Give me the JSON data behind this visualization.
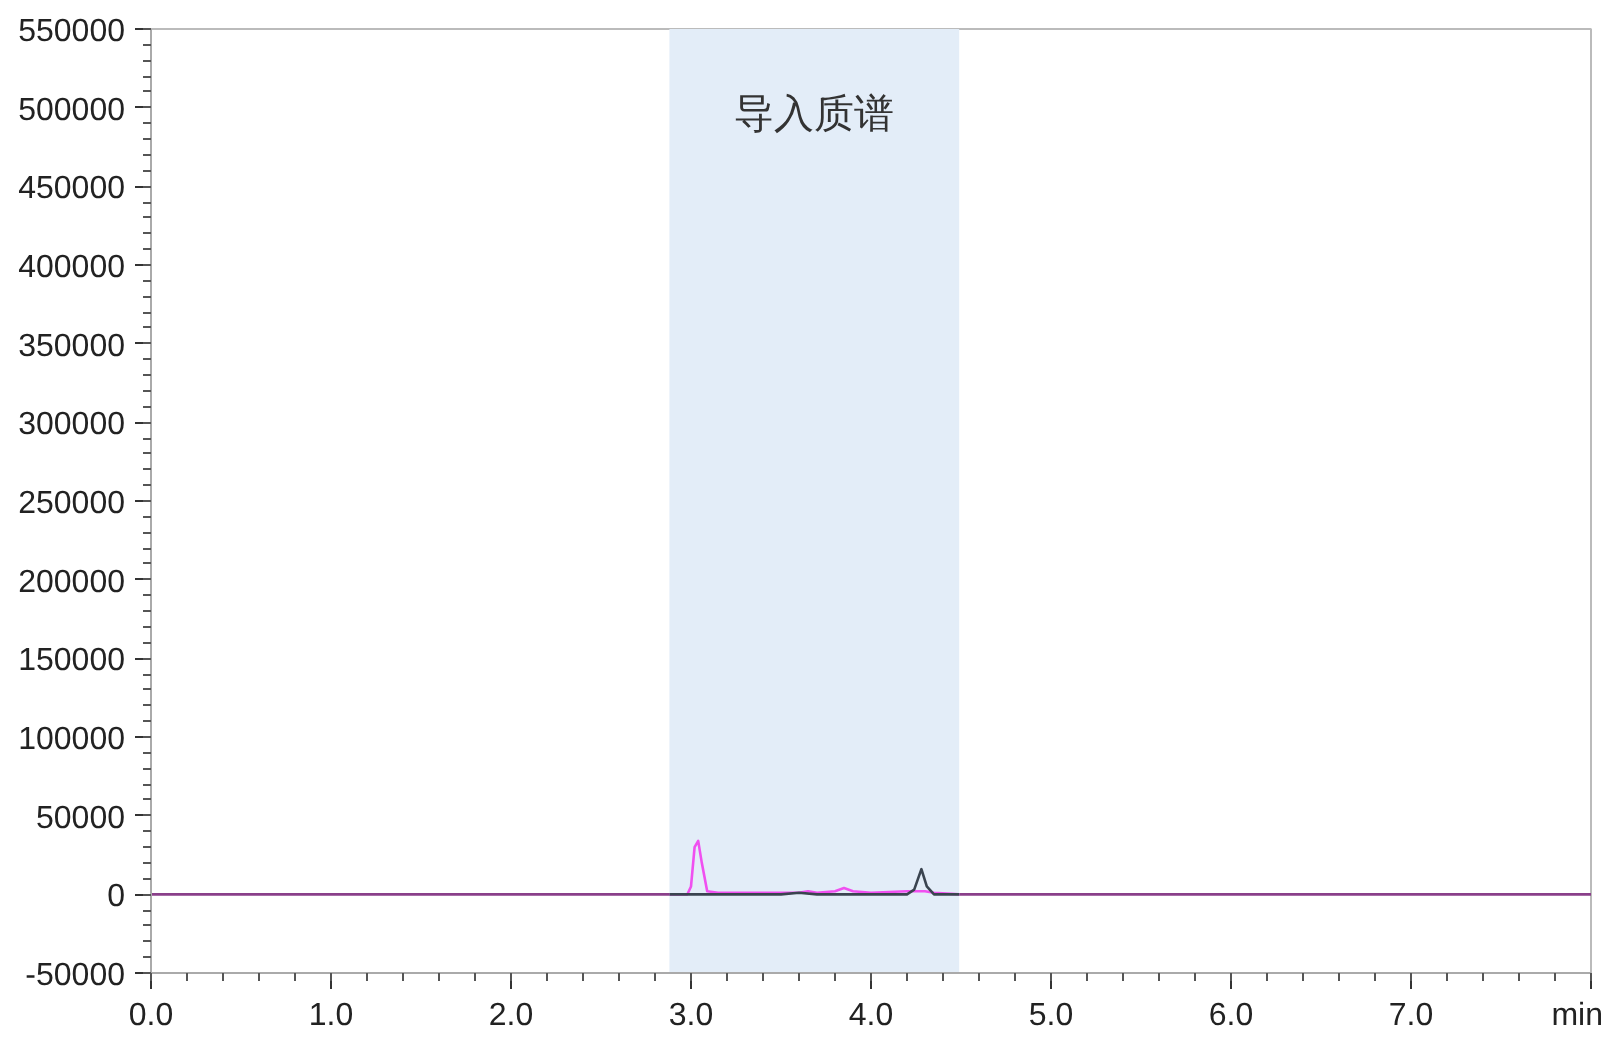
{
  "chart_data": {
    "type": "line",
    "xlim": [
      0,
      8
    ],
    "ylim": [
      -50000,
      550000
    ],
    "xticks": [
      {
        "value": 0,
        "label": "0.0"
      },
      {
        "value": 1,
        "label": "1.0"
      },
      {
        "value": 2,
        "label": "2.0"
      },
      {
        "value": 3,
        "label": "3.0"
      },
      {
        "value": 4,
        "label": "4.0"
      },
      {
        "value": 5,
        "label": "5.0"
      },
      {
        "value": 6,
        "label": "6.0"
      },
      {
        "value": 7,
        "label": "7.0"
      },
      {
        "value": 8,
        "label": "min"
      }
    ],
    "yticks": [
      -50000,
      0,
      50000,
      100000,
      150000,
      200000,
      250000,
      300000,
      350000,
      400000,
      450000,
      500000,
      550000
    ],
    "grid": false,
    "line_style": "solid",
    "marker": "none",
    "bands": [
      {
        "axis": "x",
        "from": 2.88,
        "to": 4.49,
        "label": "导入质谱",
        "color": "#e3edf8"
      }
    ],
    "series": [
      {
        "color": "#8a3f8a",
        "x": [
          0,
          2.88,
          2.89,
          4.48,
          4.49,
          8
        ],
        "values": [
          0,
          0,
          null,
          null,
          0,
          0
        ]
      },
      {
        "color": "#f050f0",
        "x": [
          2.88,
          2.98,
          3.0,
          3.02,
          3.04,
          3.06,
          3.09,
          3.15,
          3.6,
          3.65,
          3.7,
          3.8,
          3.85,
          3.9,
          4.0,
          4.2,
          4.3,
          4.35,
          4.49
        ],
        "values": [
          0,
          0,
          5000,
          30000,
          34000,
          20000,
          2000,
          1000,
          1000,
          2000,
          1000,
          2000,
          4000,
          2000,
          1000,
          2000,
          2000,
          1000,
          0
        ]
      },
      {
        "color": "#3a4450",
        "x": [
          2.88,
          3.5,
          3.6,
          3.7,
          4.2,
          4.24,
          4.28,
          4.31,
          4.35,
          4.49
        ],
        "values": [
          0,
          0,
          1000,
          0,
          0,
          3000,
          16000,
          5000,
          0,
          0
        ]
      }
    ]
  }
}
